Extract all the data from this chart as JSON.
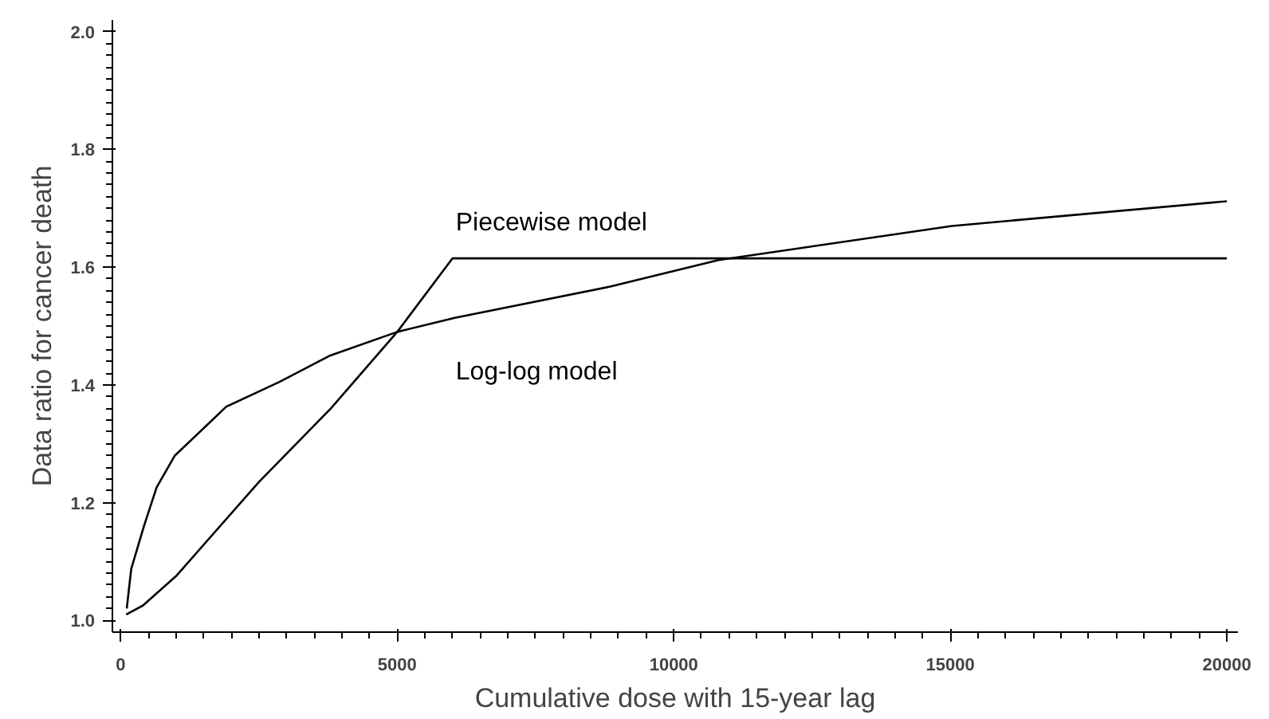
{
  "chart_data": {
    "type": "line",
    "xlabel": "Cumulative dose with 15-year lag",
    "ylabel": "Data ratio for cancer death",
    "xlim": [
      -150,
      20200
    ],
    "ylim": [
      0.98,
      2.02
    ],
    "xticks": [
      0,
      5000,
      10000,
      15000,
      20000
    ],
    "yticks": [
      {
        "value": 1.0,
        "label": "1.0"
      },
      {
        "value": 1.2,
        "label": "1.2"
      },
      {
        "value": 1.4,
        "label": "1.4"
      },
      {
        "value": 1.6,
        "label": "1.6"
      },
      {
        "value": 1.8,
        "label": "1.8"
      },
      {
        "value": 2.0,
        "label": "2.0"
      }
    ],
    "grid": false,
    "marker": "none",
    "line_style": "solid",
    "series": [
      {
        "name": "Piecewise model",
        "color": "#000000",
        "x": [
          100,
          400,
          1000,
          2500,
          3800,
          5000,
          6000,
          20000
        ],
        "values": [
          1.01,
          1.025,
          1.075,
          1.235,
          1.36,
          1.49,
          1.615,
          1.615
        ]
      },
      {
        "name": "Log-log model",
        "color": "#000000",
        "x": [
          110,
          190,
          420,
          650,
          980,
          1910,
          2870,
          3790,
          5000,
          6040,
          8850,
          10810,
          15030,
          20000
        ],
        "values": [
          1.02,
          1.087,
          1.16,
          1.226,
          1.28,
          1.363,
          1.405,
          1.45,
          1.49,
          1.514,
          1.567,
          1.612,
          1.67,
          1.712
        ]
      }
    ]
  }
}
